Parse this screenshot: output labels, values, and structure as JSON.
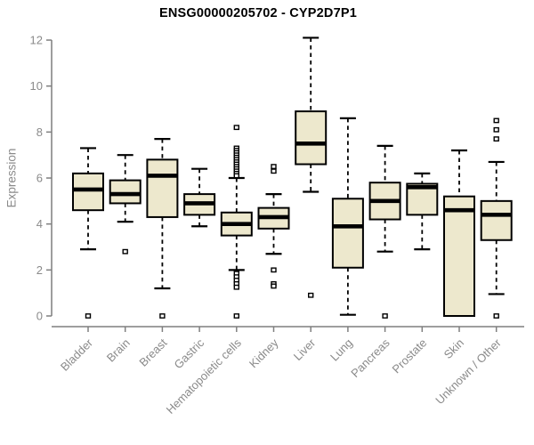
{
  "chart_data": {
    "type": "boxplot",
    "title": "ENSG00000205702 - CYP2D7P1",
    "ylabel": "Expression",
    "xlabel": "",
    "ylim": [
      0,
      12
    ],
    "yticks": [
      0,
      2,
      4,
      6,
      8,
      10,
      12
    ],
    "grid": false,
    "legend": null,
    "categories": [
      "Bladder",
      "Brain",
      "Breast",
      "Gastric",
      "Hematopoietic cells",
      "Kidney",
      "Liver",
      "Lung",
      "Pancreas",
      "Prostate",
      "Skin",
      "Unknown / Other"
    ],
    "series": [
      {
        "name": "Bladder",
        "low": 2.9,
        "q1": 4.6,
        "median": 5.5,
        "q3": 6.2,
        "high": 7.3,
        "outliers": [
          0
        ]
      },
      {
        "name": "Brain",
        "low": 4.1,
        "q1": 4.9,
        "median": 5.3,
        "q3": 5.9,
        "high": 7.0,
        "outliers": [
          2.8
        ]
      },
      {
        "name": "Breast",
        "low": 1.2,
        "q1": 4.3,
        "median": 6.1,
        "q3": 6.8,
        "high": 7.7,
        "outliers": [
          0
        ]
      },
      {
        "name": "Gastric",
        "low": 3.9,
        "q1": 4.4,
        "median": 4.9,
        "q3": 5.3,
        "high": 6.4,
        "outliers": []
      },
      {
        "name": "Hematopoietic cells",
        "low": 2.0,
        "q1": 3.5,
        "median": 4.0,
        "q3": 4.5,
        "high": 6.0,
        "outliers": [
          8.2,
          7.3,
          7.2,
          7.1,
          7.0,
          6.9,
          6.8,
          6.7,
          6.6,
          6.5,
          6.4,
          6.3,
          6.2,
          6.1,
          1.85,
          1.7,
          1.55,
          1.4,
          1.25,
          0
        ]
      },
      {
        "name": "Kidney",
        "low": 2.7,
        "q1": 3.8,
        "median": 4.3,
        "q3": 4.7,
        "high": 5.3,
        "outliers": [
          6.5,
          6.3,
          2.0,
          1.4,
          1.3
        ]
      },
      {
        "name": "Liver",
        "low": 5.4,
        "q1": 6.6,
        "median": 7.5,
        "q3": 8.9,
        "high": 12.1,
        "outliers": [
          0.9
        ]
      },
      {
        "name": "Lung",
        "low": 0.05,
        "q1": 2.1,
        "median": 3.9,
        "q3": 5.1,
        "high": 8.6,
        "outliers": []
      },
      {
        "name": "Pancreas",
        "low": 2.8,
        "q1": 4.2,
        "median": 5.0,
        "q3": 5.8,
        "high": 7.4,
        "outliers": [
          0
        ]
      },
      {
        "name": "Prostate",
        "low": 2.9,
        "q1": 4.4,
        "median": 5.6,
        "q3": 5.75,
        "high": 6.2,
        "outliers": []
      },
      {
        "name": "Skin",
        "low": 0,
        "q1": 0,
        "median": 4.6,
        "q3": 5.2,
        "high": 7.2,
        "outliers": []
      },
      {
        "name": "Unknown / Other",
        "low": 0.95,
        "q1": 3.3,
        "median": 4.4,
        "q3": 5.0,
        "high": 6.7,
        "outliers": [
          8.5,
          8.1,
          7.7,
          0
        ]
      }
    ],
    "colors": {
      "box_fill": "#ede8cd",
      "box_stroke": "#000000",
      "whisker": "#000000",
      "axis": "#7f7f7f",
      "tick_label": "#8a8a8a",
      "title": "#000000",
      "background": "#ffffff"
    }
  }
}
